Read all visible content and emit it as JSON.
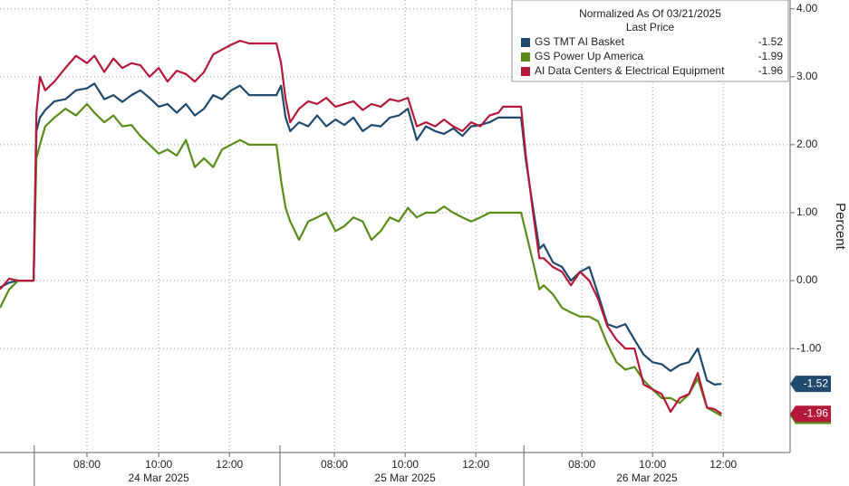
{
  "chart_data": {
    "type": "line",
    "legend_title": "Normalized As Of 03/21/2025",
    "legend_subtitle": "Last Price",
    "y_axis_label": "Percent",
    "x": [
      0,
      0.26,
      0.51,
      0.95,
      1.03,
      1.13,
      1.28,
      1.54,
      1.85,
      2.15,
      2.46,
      2.67,
      2.95,
      3.21,
      3.46,
      3.72,
      3.97,
      4.23,
      4.49,
      4.74,
      5.0,
      5.26,
      5.51,
      5.77,
      6.03,
      6.28,
      6.54,
      6.79,
      7.05,
      7.31,
      7.82,
      7.95,
      8.08,
      8.21,
      8.46,
      8.72,
      8.97,
      9.23,
      9.49,
      9.74,
      10.0,
      10.26,
      10.51,
      10.77,
      11.03,
      11.28,
      11.54,
      11.79,
      12.05,
      12.31,
      12.56,
      12.82,
      13.08,
      13.33,
      13.59,
      13.85,
      14.1,
      14.23,
      14.74,
      14.87,
      15.08,
      15.26,
      15.38,
      15.64,
      15.9,
      16.15,
      16.41,
      16.67,
      16.92,
      17.18,
      17.44,
      17.69,
      17.95,
      18.21,
      18.46,
      18.72,
      18.97,
      19.23,
      19.49,
      19.74,
      20.0,
      20.21,
      20.41
    ],
    "series": [
      {
        "name": "GS TMT AI Basket",
        "color": "#1f4a6e",
        "values": [
          -0.1,
          -0.03,
          0,
          0,
          2.2,
          2.4,
          2.51,
          2.64,
          2.67,
          2.8,
          2.83,
          2.9,
          2.67,
          2.73,
          2.63,
          2.73,
          2.8,
          2.69,
          2.56,
          2.6,
          2.47,
          2.6,
          2.43,
          2.53,
          2.73,
          2.67,
          2.8,
          2.87,
          2.73,
          2.73,
          2.73,
          2.87,
          2.4,
          2.2,
          2.33,
          2.27,
          2.43,
          2.27,
          2.37,
          2.29,
          2.4,
          2.2,
          2.29,
          2.27,
          2.4,
          2.43,
          2.53,
          2.07,
          2.27,
          2.2,
          2.16,
          2.24,
          2.13,
          2.27,
          2.29,
          2.33,
          2.4,
          2.4,
          2.4,
          1.8,
          1.07,
          0.47,
          0.53,
          0.27,
          0.2,
          0,
          0.13,
          0.2,
          -0.2,
          -0.64,
          -0.69,
          -0.64,
          -0.87,
          -1.09,
          -1.2,
          -1.23,
          -1.33,
          -1.24,
          -1.2,
          -1.0,
          -1.47,
          -1.53,
          -1.52
        ]
      },
      {
        "name": "GS Power Up America",
        "color": "#5b8c1a",
        "values": [
          -0.4,
          -0.13,
          0,
          0,
          1.8,
          2.0,
          2.27,
          2.4,
          2.53,
          2.43,
          2.6,
          2.47,
          2.33,
          2.43,
          2.27,
          2.29,
          2.13,
          2.0,
          1.87,
          1.93,
          1.84,
          2.07,
          1.67,
          1.8,
          1.67,
          1.93,
          2.0,
          2.07,
          2.0,
          2.0,
          2.0,
          1.47,
          1.07,
          0.87,
          0.6,
          0.87,
          0.93,
          1.0,
          0.73,
          0.8,
          0.93,
          0.87,
          0.6,
          0.73,
          0.93,
          0.87,
          1.07,
          0.93,
          1.0,
          1.0,
          1.09,
          1.0,
          0.93,
          0.87,
          0.93,
          1.0,
          1.0,
          1.0,
          1.0,
          0.73,
          0.27,
          -0.13,
          -0.07,
          -0.2,
          -0.4,
          -0.47,
          -0.53,
          -0.53,
          -0.6,
          -0.93,
          -1.2,
          -1.31,
          -1.27,
          -1.47,
          -1.6,
          -1.73,
          -1.73,
          -1.8,
          -1.67,
          -1.44,
          -1.87,
          -1.93,
          -1.99
        ]
      },
      {
        "name": "AI Data Centers & Electrical Equipment",
        "color": "#b5193a",
        "values": [
          -0.13,
          0.03,
          0,
          0,
          2.47,
          3.0,
          2.8,
          2.93,
          3.13,
          3.31,
          3.2,
          3.31,
          3.07,
          3.27,
          3.13,
          3.2,
          3.17,
          3.0,
          3.13,
          2.93,
          3.09,
          3.04,
          2.93,
          3.07,
          3.33,
          3.4,
          3.47,
          3.53,
          3.49,
          3.49,
          3.49,
          3.2,
          2.67,
          2.33,
          2.53,
          2.64,
          2.6,
          2.69,
          2.56,
          2.6,
          2.64,
          2.51,
          2.6,
          2.56,
          2.67,
          2.64,
          2.69,
          2.27,
          2.33,
          2.27,
          2.37,
          2.27,
          2.2,
          2.33,
          2.27,
          2.43,
          2.47,
          2.56,
          2.56,
          1.87,
          1.0,
          0.33,
          0.33,
          0.2,
          0.13,
          -0.07,
          0.13,
          0,
          -0.27,
          -0.67,
          -0.87,
          -1.0,
          -1.0,
          -1.53,
          -1.6,
          -1.67,
          -1.93,
          -1.73,
          -1.67,
          -1.36,
          -1.87,
          -1.89,
          -1.96
        ]
      }
    ],
    "xlim": [
      0,
      22.3
    ],
    "xticks": [
      {
        "value": 2.46,
        "label": "08:00"
      },
      {
        "value": 4.49,
        "label": "10:00"
      },
      {
        "value": 6.49,
        "label": "12:00"
      },
      {
        "value": 9.46,
        "label": "08:00"
      },
      {
        "value": 11.46,
        "label": "10:00"
      },
      {
        "value": 13.46,
        "label": "12:00"
      },
      {
        "value": 16.46,
        "label": "08:00"
      },
      {
        "value": 18.46,
        "label": "10:00"
      },
      {
        "value": 20.46,
        "label": "12:00"
      }
    ],
    "date_labels": [
      {
        "value": 4.49,
        "label": "24 Mar 2025"
      },
      {
        "value": 11.46,
        "label": "25 Mar 2025"
      },
      {
        "value": 18.3,
        "label": "26 Mar 2025"
      }
    ],
    "date_ticks": [
      0.97,
      7.92,
      14.82
    ],
    "ylim": [
      -2.53,
      4.13
    ],
    "yticks": [
      {
        "value": 4,
        "label": "4.00"
      },
      {
        "value": 3,
        "label": "3.00"
      },
      {
        "value": 2,
        "label": "2.00"
      },
      {
        "value": 1,
        "label": "1.00"
      },
      {
        "value": 0,
        "label": "0.00"
      },
      {
        "value": -1,
        "label": "-1.00"
      }
    ],
    "grid": true
  }
}
